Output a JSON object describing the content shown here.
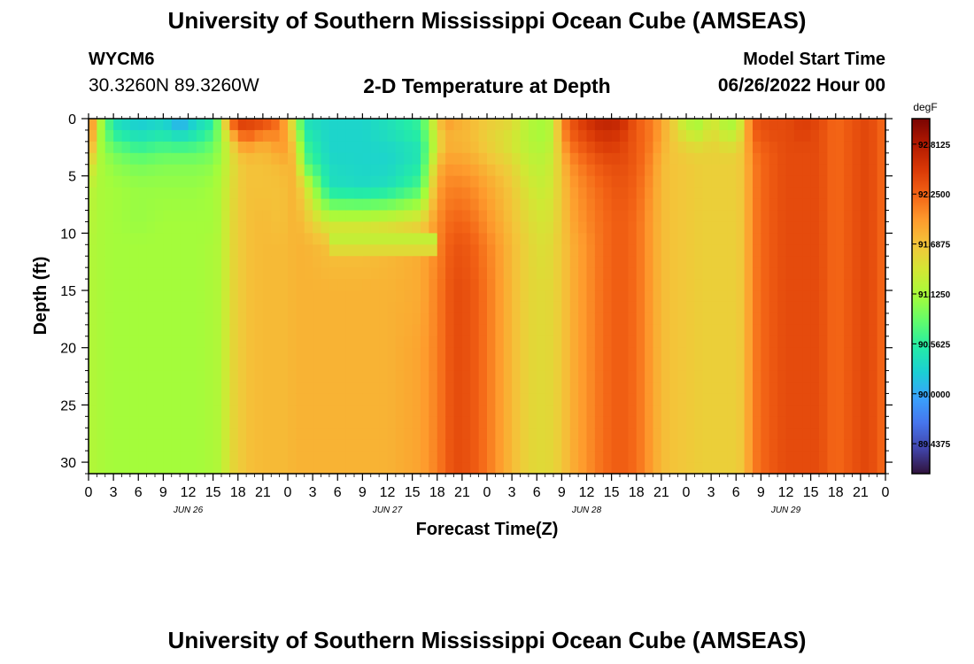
{
  "header": {
    "title": "University of Southern Mississippi Ocean Cube (AMSEAS)",
    "station_id": "WYCM6",
    "station_coords": "30.3260N  89.3260W",
    "start_label": "Model Start Time",
    "start_value": "06/26/2022 Hour 00"
  },
  "footer": {
    "title": "University of Southern Mississippi Ocean Cube (AMSEAS)"
  },
  "chart_data": {
    "type": "heatmap",
    "title": "2-D Temperature at Depth",
    "xlabel": "Forecast Time(Z)",
    "ylabel": "Depth (ft)",
    "colorbar_unit": "degF",
    "x_range_hours": [
      0,
      96
    ],
    "y_range_ft": [
      0,
      31
    ],
    "y_ticks": [
      0,
      5,
      10,
      15,
      20,
      25,
      30
    ],
    "x_tick_labels": [
      "0",
      "3",
      "6",
      "9",
      "12",
      "15",
      "18",
      "21",
      "0",
      "3",
      "6",
      "9",
      "12",
      "15",
      "18",
      "21",
      "0",
      "3",
      "6",
      "9",
      "12",
      "15",
      "18",
      "21",
      "0",
      "3",
      "6",
      "9",
      "12",
      "15",
      "18",
      "21",
      "0"
    ],
    "day_labels": [
      {
        "label": "JUN 26",
        "hour": 12
      },
      {
        "label": "JUN 27",
        "hour": 36
      },
      {
        "label": "JUN 28",
        "hour": 60
      },
      {
        "label": "JUN 29",
        "hour": 84
      }
    ],
    "colorbar_ticks": [
      92.8125,
      92.25,
      91.6875,
      91.125,
      90.5625,
      90.0,
      89.4375
    ],
    "colorbar_tick_labels": [
      "92.8125",
      "92.2500",
      "91.6875",
      "91.1250",
      "90.5625",
      "90.0000",
      "89.4375"
    ],
    "color_range": [
      89.1,
      93.1
    ],
    "colormap": [
      "#30123b",
      "#4145ab",
      "#4675ed",
      "#39a2fc",
      "#1bcfd4",
      "#24eca6",
      "#61fc6c",
      "#a4fc3b",
      "#d1e834",
      "#f3c63a",
      "#fe9b2d",
      "#f36315",
      "#d93806",
      "#b11901",
      "#7a0402"
    ],
    "columns": [
      {
        "h": 0,
        "t": [
          92.4,
          92.4,
          92.3,
          92.0,
          91.6,
          91.3,
          91.25,
          91.2,
          91.2,
          91.2,
          91.2,
          91.2
        ]
      },
      {
        "h": 1,
        "t": [
          91.4,
          91.3,
          91.2,
          91.2,
          91.2,
          91.15,
          91.15,
          91.15,
          91.15,
          91.15,
          91.15,
          91.15
        ]
      },
      {
        "h": 3,
        "t": [
          90.4,
          90.5,
          90.7,
          90.9,
          91.0,
          91.1,
          91.1,
          91.1,
          91.1,
          91.1,
          91.1,
          91.1
        ]
      },
      {
        "h": 6,
        "t": [
          90.2,
          90.3,
          90.5,
          90.7,
          90.9,
          91.05,
          91.05,
          91.1,
          91.1,
          91.1,
          91.1,
          91.1
        ]
      },
      {
        "h": 9,
        "t": [
          90.3,
          90.4,
          90.6,
          90.8,
          90.95,
          91.05,
          91.1,
          91.1,
          91.1,
          91.1,
          91.1,
          91.1
        ]
      },
      {
        "h": 11,
        "t": [
          89.9,
          90.2,
          90.5,
          90.8,
          90.95,
          91.05,
          91.1,
          91.1,
          91.1,
          91.1,
          91.1,
          91.1
        ]
      },
      {
        "h": 13,
        "t": [
          90.3,
          90.4,
          90.6,
          90.8,
          90.95,
          91.05,
          91.1,
          91.1,
          91.1,
          91.1,
          91.1,
          91.1
        ]
      },
      {
        "h": 15,
        "t": [
          90.5,
          90.6,
          90.8,
          90.9,
          91.0,
          91.1,
          91.1,
          91.15,
          91.15,
          91.15,
          91.15,
          91.15
        ]
      },
      {
        "h": 16,
        "t": [
          91.2,
          91.1,
          91.1,
          91.1,
          91.15,
          91.2,
          91.2,
          91.2,
          91.2,
          91.2,
          91.2,
          91.2
        ]
      },
      {
        "h": 17,
        "t": [
          92.2,
          91.8,
          91.5,
          91.4,
          91.4,
          91.45,
          91.5,
          91.5,
          91.5,
          91.5,
          91.5,
          91.5
        ]
      },
      {
        "h": 18,
        "t": [
          92.6,
          92.3,
          91.9,
          91.7,
          91.6,
          91.6,
          91.6,
          91.6,
          91.6,
          91.6,
          91.6,
          91.6
        ]
      },
      {
        "h": 19,
        "t": [
          92.5,
          92.4,
          92.1,
          91.8,
          91.7,
          91.7,
          91.7,
          91.7,
          91.7,
          91.7,
          91.7,
          91.7
        ]
      },
      {
        "h": 21,
        "t": [
          92.45,
          92.25,
          91.85,
          91.75,
          91.7,
          91.7,
          91.75,
          91.75,
          91.75,
          91.75,
          91.75,
          91.75
        ]
      },
      {
        "h": 23,
        "t": [
          92.2,
          92.1,
          92.0,
          91.9,
          91.75,
          91.7,
          91.7,
          91.75,
          91.75,
          91.75,
          91.75,
          91.75
        ]
      },
      {
        "h": 24,
        "t": [
          91.7,
          91.8,
          91.9,
          91.9,
          91.8,
          91.75,
          91.75,
          91.75,
          91.75,
          91.75,
          91.75,
          91.75
        ]
      },
      {
        "h": 25,
        "t": [
          91.2,
          91.3,
          91.5,
          91.6,
          91.75,
          91.8,
          91.8,
          91.8,
          91.8,
          91.8,
          91.8,
          91.8
        ]
      },
      {
        "h": 26,
        "t": [
          90.4,
          90.5,
          90.6,
          90.7,
          90.8,
          91.5,
          91.7,
          91.8,
          91.8,
          91.8,
          91.8,
          91.8
        ]
      },
      {
        "h": 29,
        "t": [
          90.3,
          90.3,
          90.3,
          90.3,
          90.35,
          90.4,
          91.3,
          91.7,
          91.8,
          91.8,
          91.8,
          91.8
        ]
      },
      {
        "h": 33,
        "t": [
          90.3,
          90.3,
          90.3,
          90.3,
          90.3,
          90.35,
          91.3,
          91.7,
          91.8,
          91.8,
          91.8,
          91.8
        ]
      },
      {
        "h": 36,
        "t": [
          90.4,
          90.4,
          90.35,
          90.3,
          90.3,
          90.4,
          91.35,
          91.75,
          91.8,
          91.8,
          91.8,
          91.8
        ]
      },
      {
        "h": 40,
        "t": [
          90.6,
          90.6,
          90.5,
          90.45,
          90.5,
          90.7,
          91.5,
          91.85,
          91.85,
          91.9,
          91.9,
          91.9
        ]
      },
      {
        "h": 42,
        "t": [
          91.6,
          91.5,
          91.4,
          91.5,
          91.7,
          91.9,
          92.0,
          92.05,
          92.1,
          92.1,
          92.1,
          92.1
        ]
      },
      {
        "h": 43,
        "t": [
          92.0,
          91.85,
          91.8,
          91.85,
          91.95,
          92.05,
          92.15,
          92.2,
          92.25,
          92.25,
          92.25,
          92.25
        ]
      },
      {
        "h": 44,
        "t": [
          91.9,
          91.8,
          91.8,
          91.85,
          91.95,
          92.1,
          92.25,
          92.35,
          92.4,
          92.4,
          92.4,
          92.4
        ]
      },
      {
        "h": 46,
        "t": [
          91.75,
          91.75,
          91.75,
          91.8,
          91.9,
          92.05,
          92.2,
          92.3,
          92.35,
          92.35,
          92.35,
          92.35
        ]
      },
      {
        "h": 48,
        "t": [
          91.65,
          91.6,
          91.6,
          91.65,
          91.75,
          91.9,
          92.0,
          92.1,
          92.15,
          92.15,
          92.15,
          92.15
        ]
      },
      {
        "h": 51,
        "t": [
          91.55,
          91.45,
          91.4,
          91.45,
          91.55,
          91.65,
          91.7,
          91.75,
          91.75,
          91.75,
          91.75,
          91.75
        ]
      },
      {
        "h": 53,
        "t": [
          91.2,
          91.2,
          91.2,
          91.25,
          91.3,
          91.4,
          91.5,
          91.55,
          91.55,
          91.55,
          91.55,
          91.55
        ]
      },
      {
        "h": 55,
        "t": [
          91.1,
          91.1,
          91.15,
          91.2,
          91.25,
          91.3,
          91.4,
          91.45,
          91.5,
          91.5,
          91.5,
          91.5
        ]
      },
      {
        "h": 56,
        "t": [
          91.3,
          91.3,
          91.3,
          91.35,
          91.4,
          91.45,
          91.5,
          91.55,
          91.55,
          91.55,
          91.55,
          91.55
        ]
      },
      {
        "h": 57,
        "t": [
          92.0,
          92.0,
          91.9,
          91.8,
          91.7,
          91.65,
          91.65,
          91.65,
          91.65,
          91.65,
          91.65,
          91.65
        ]
      },
      {
        "h": 58,
        "t": [
          92.3,
          92.3,
          92.2,
          92.1,
          92.0,
          91.9,
          91.85,
          91.8,
          91.8,
          91.8,
          91.8,
          91.8
        ]
      },
      {
        "h": 60,
        "t": [
          92.6,
          92.5,
          92.4,
          92.3,
          92.2,
          92.1,
          92.05,
          92.0,
          92.0,
          92.0,
          92.0,
          92.0
        ]
      },
      {
        "h": 62,
        "t": [
          92.75,
          92.65,
          92.55,
          92.45,
          92.35,
          92.25,
          92.2,
          92.2,
          92.2,
          92.2,
          92.2,
          92.2
        ]
      },
      {
        "h": 64,
        "t": [
          92.7,
          92.6,
          92.5,
          92.45,
          92.4,
          92.35,
          92.3,
          92.3,
          92.3,
          92.3,
          92.3,
          92.3
        ]
      },
      {
        "h": 66,
        "t": [
          92.3,
          92.3,
          92.3,
          92.3,
          92.3,
          92.25,
          92.2,
          92.2,
          92.2,
          92.2,
          92.2,
          92.2
        ]
      },
      {
        "h": 68,
        "t": [
          92.1,
          92.1,
          92.1,
          92.05,
          92.0,
          91.95,
          91.9,
          91.9,
          91.9,
          91.9,
          91.9,
          91.9
        ]
      },
      {
        "h": 69,
        "t": [
          91.9,
          91.9,
          91.85,
          91.8,
          91.75,
          91.75,
          91.75,
          91.75,
          91.75,
          91.75,
          91.75,
          91.75
        ]
      },
      {
        "h": 70,
        "t": [
          91.7,
          91.7,
          91.7,
          91.7,
          91.7,
          91.7,
          91.7,
          91.7,
          91.7,
          91.7,
          91.7,
          91.7
        ]
      },
      {
        "h": 72,
        "t": [
          91.2,
          91.3,
          91.5,
          91.6,
          91.65,
          91.65,
          91.65,
          91.65,
          91.65,
          91.65,
          91.65,
          91.65
        ]
      },
      {
        "h": 74,
        "t": [
          91.1,
          91.2,
          91.4,
          91.55,
          91.6,
          91.6,
          91.6,
          91.6,
          91.6,
          91.6,
          91.6,
          91.6
        ]
      },
      {
        "h": 75,
        "t": [
          91.5,
          91.55,
          91.6,
          91.6,
          91.6,
          91.6,
          91.6,
          91.6,
          91.6,
          91.6,
          91.6,
          91.6
        ]
      },
      {
        "h": 76,
        "t": [
          91.2,
          91.3,
          91.45,
          91.55,
          91.6,
          91.6,
          91.6,
          91.6,
          91.6,
          91.6,
          91.6,
          91.6
        ]
      },
      {
        "h": 78,
        "t": [
          91.1,
          91.2,
          91.4,
          91.55,
          91.6,
          91.6,
          91.6,
          91.6,
          91.6,
          91.6,
          91.6,
          91.6
        ]
      },
      {
        "h": 79,
        "t": [
          91.6,
          91.65,
          91.7,
          91.7,
          91.7,
          91.7,
          91.7,
          91.7,
          91.7,
          91.7,
          91.7,
          91.7
        ]
      },
      {
        "h": 80,
        "t": [
          92.3,
          92.3,
          92.2,
          92.15,
          92.1,
          92.1,
          92.1,
          92.1,
          92.1,
          92.1,
          92.1,
          92.1
        ]
      },
      {
        "h": 82,
        "t": [
          92.4,
          92.4,
          92.35,
          92.3,
          92.3,
          92.3,
          92.3,
          92.3,
          92.3,
          92.3,
          92.3,
          92.3
        ]
      },
      {
        "h": 84,
        "t": [
          92.4,
          92.4,
          92.4,
          92.4,
          92.4,
          92.4,
          92.4,
          92.4,
          92.4,
          92.4,
          92.4,
          92.4
        ]
      },
      {
        "h": 86,
        "t": [
          92.5,
          92.5,
          92.45,
          92.4,
          92.4,
          92.4,
          92.4,
          92.4,
          92.4,
          92.4,
          92.4,
          92.4
        ]
      },
      {
        "h": 88,
        "t": [
          92.45,
          92.4,
          92.4,
          92.4,
          92.4,
          92.4,
          92.4,
          92.4,
          92.4,
          92.4,
          92.4,
          92.4
        ]
      },
      {
        "h": 90,
        "t": [
          92.2,
          92.2,
          92.2,
          92.2,
          92.2,
          92.2,
          92.2,
          92.2,
          92.2,
          92.2,
          92.2,
          92.2
        ]
      },
      {
        "h": 92,
        "t": [
          92.35,
          92.35,
          92.35,
          92.35,
          92.35,
          92.35,
          92.35,
          92.35,
          92.35,
          92.35,
          92.35,
          92.35
        ]
      },
      {
        "h": 94,
        "t": [
          92.45,
          92.45,
          92.45,
          92.45,
          92.45,
          92.45,
          92.45,
          92.45,
          92.45,
          92.45,
          92.45,
          92.45
        ]
      },
      {
        "h": 95,
        "t": [
          92.3,
          92.3,
          92.3,
          92.3,
          92.3,
          92.3,
          92.3,
          92.3,
          92.3,
          92.3,
          92.3,
          92.3
        ]
      },
      {
        "h": 96,
        "t": [
          92.2,
          92.2,
          92.2,
          92.2,
          92.2,
          92.2,
          92.2,
          92.2,
          92.2,
          92.2,
          92.2,
          92.2
        ]
      }
    ],
    "column_depths_ft": [
      0,
      1,
      2,
      3,
      4,
      6,
      9,
      11,
      15,
      20,
      25,
      31
    ],
    "overrides": [
      {
        "h0": 29,
        "h1": 42,
        "d0": 10,
        "d1": 10.9,
        "t": 91.3
      },
      {
        "h0": 29,
        "h1": 42,
        "d0": 10.9,
        "d1": 11.9,
        "t": 91.5
      }
    ]
  }
}
